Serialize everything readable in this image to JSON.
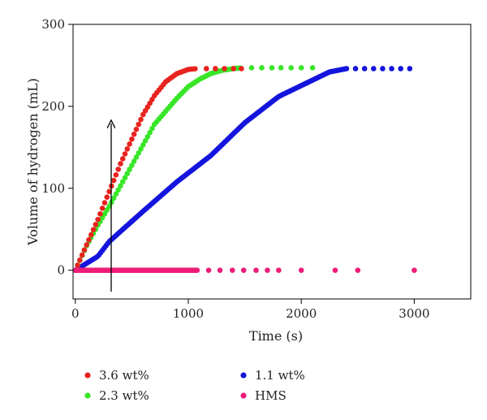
{
  "chart_data": {
    "type": "scatter",
    "title": "",
    "xlabel": "Time (s)",
    "ylabel": "Volume of hydrogen (mL)",
    "xlim": [
      -20,
      3500
    ],
    "ylim": [
      -35,
      300
    ],
    "xticks": [
      0,
      1000,
      2000,
      3000
    ],
    "yticks": [
      0,
      100,
      200,
      300
    ],
    "grid": false,
    "legend": "bottom",
    "annotation": "upward arrow at t≈300 s from ≈-17 to ≈185 mL indicating increasing loading",
    "series": [
      {
        "name": "3.6 wt%",
        "color": "#e8231e",
        "curve": [
          [
            0,
            0
          ],
          [
            200,
            62
          ],
          [
            400,
            130
          ],
          [
            600,
            190
          ],
          [
            700,
            213
          ],
          [
            800,
            230
          ],
          [
            900,
            240
          ],
          [
            1000,
            245
          ],
          [
            1070,
            246
          ]
        ],
        "dense_step": 20,
        "extra_points": [
          [
            1160,
            246
          ],
          [
            1240,
            246
          ],
          [
            1320,
            246
          ],
          [
            1400,
            246
          ],
          [
            1470,
            246
          ]
        ]
      },
      {
        "name": "2.3 wt%",
        "color": "#38e628",
        "curve": [
          [
            0,
            0
          ],
          [
            100,
            30
          ],
          [
            200,
            55
          ],
          [
            300,
            78
          ],
          [
            500,
            128
          ],
          [
            700,
            178
          ],
          [
            900,
            210
          ],
          [
            1000,
            224
          ],
          [
            1100,
            233
          ],
          [
            1200,
            240
          ],
          [
            1300,
            244
          ],
          [
            1400,
            246
          ],
          [
            1470,
            247
          ]
        ],
        "dense_step": 20,
        "extra_points": [
          [
            1560,
            247
          ],
          [
            1650,
            247
          ],
          [
            1740,
            247
          ],
          [
            1820,
            247
          ],
          [
            1910,
            247
          ],
          [
            2000,
            247
          ],
          [
            2100,
            247
          ]
        ]
      },
      {
        "name": "1.1 wt%",
        "color": "#1414dd",
        "curve": [
          [
            0,
            0
          ],
          [
            200,
            17
          ],
          [
            300,
            35
          ],
          [
            600,
            72
          ],
          [
            900,
            108
          ],
          [
            1200,
            140
          ],
          [
            1500,
            180
          ],
          [
            1800,
            212
          ],
          [
            2100,
            232
          ],
          [
            2250,
            242
          ],
          [
            2400,
            246
          ]
        ],
        "dense_step": 16,
        "extra_points": [
          [
            2480,
            246
          ],
          [
            2560,
            246
          ],
          [
            2640,
            246
          ],
          [
            2720,
            246
          ],
          [
            2800,
            246
          ],
          [
            2880,
            246
          ],
          [
            2960,
            246
          ]
        ]
      },
      {
        "name": "HMS",
        "color": "#ee1c78",
        "curve": [
          [
            0,
            0
          ],
          [
            1080,
            0
          ]
        ],
        "dense_step": 14,
        "extra_points": [
          [
            1180,
            0
          ],
          [
            1280,
            0
          ],
          [
            1390,
            0
          ],
          [
            1490,
            0
          ],
          [
            1600,
            0
          ],
          [
            1700,
            0
          ],
          [
            1800,
            0
          ],
          [
            2000,
            0
          ],
          [
            2300,
            0
          ],
          [
            2500,
            0
          ],
          [
            3000,
            0
          ]
        ]
      }
    ]
  }
}
